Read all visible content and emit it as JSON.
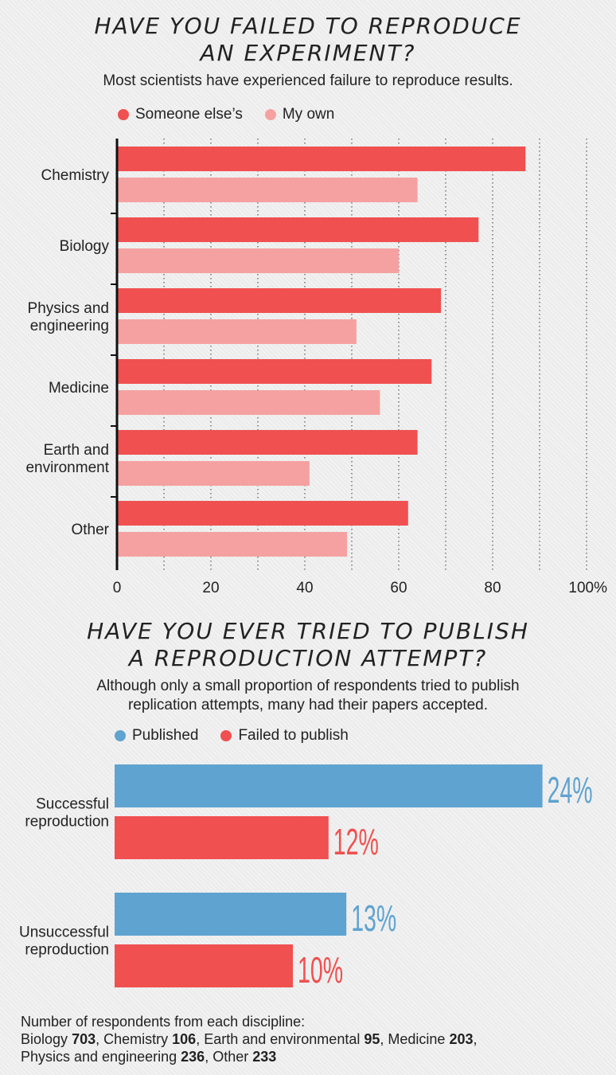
{
  "chart_data": [
    {
      "type": "bar",
      "orientation": "horizontal",
      "title": "HAVE YOU FAILED TO REPRODUCE AN EXPERIMENT?",
      "title_lines": [
        "HAVE YOU FAILED TO REPRODUCE",
        "AN EXPERIMENT?"
      ],
      "subtitle": "Most scientists have experienced failure to reproduce results.",
      "categories": [
        [
          "Chemistry"
        ],
        [
          "Biology"
        ],
        [
          "Physics and",
          "engineering"
        ],
        [
          "Medicine"
        ],
        [
          "Earth and",
          "environment"
        ],
        [
          "Other"
        ]
      ],
      "series": [
        {
          "name": "Someone else’s",
          "color": "#f05050",
          "values": [
            87,
            77,
            69,
            67,
            64,
            62
          ]
        },
        {
          "name": "My own",
          "color": "#f6a1a1",
          "values": [
            64,
            60,
            51,
            56,
            41,
            49
          ]
        }
      ],
      "xlim": [
        0,
        100
      ],
      "xticks": [
        "0",
        "20",
        "40",
        "60",
        "80",
        "100%"
      ],
      "xtick_values": [
        0,
        20,
        40,
        60,
        80,
        100
      ],
      "grid": "vertical dotted",
      "legend_position": "top-left"
    },
    {
      "type": "bar",
      "orientation": "horizontal",
      "title": "HAVE YOU EVER TRIED TO PUBLISH A REPRODUCTION ATTEMPT?",
      "title_lines": [
        "HAVE YOU EVER TRIED TO PUBLISH",
        "A REPRODUCTION ATTEMPT?"
      ],
      "subtitle_lines": [
        "Although only a small proportion of respondents tried to publish",
        "replication attempts, many had their papers accepted."
      ],
      "categories": [
        [
          "Successful",
          "reproduction"
        ],
        [
          "Unsuccessful",
          "reproduction"
        ]
      ],
      "series": [
        {
          "name": "Published",
          "color": "#5fa3d0",
          "values": [
            24,
            13
          ],
          "labels": [
            "24%",
            "13%"
          ]
        },
        {
          "name": "Failed to publish",
          "color": "#f05050",
          "values": [
            12,
            10
          ],
          "labels": [
            "12%",
            "10%"
          ]
        }
      ],
      "legend_position": "top-left"
    }
  ],
  "footer": {
    "heading": "Number of respondents from each discipline:",
    "entries": [
      {
        "name": "Biology",
        "count": "703"
      },
      {
        "name": "Chemistry",
        "count": "106"
      },
      {
        "name": "Earth and environmental",
        "count": "95"
      },
      {
        "name": "Medicine",
        "count": "203"
      },
      {
        "name": "Physics and engineering",
        "count": "236"
      },
      {
        "name": "Other",
        "count": "233"
      }
    ]
  }
}
